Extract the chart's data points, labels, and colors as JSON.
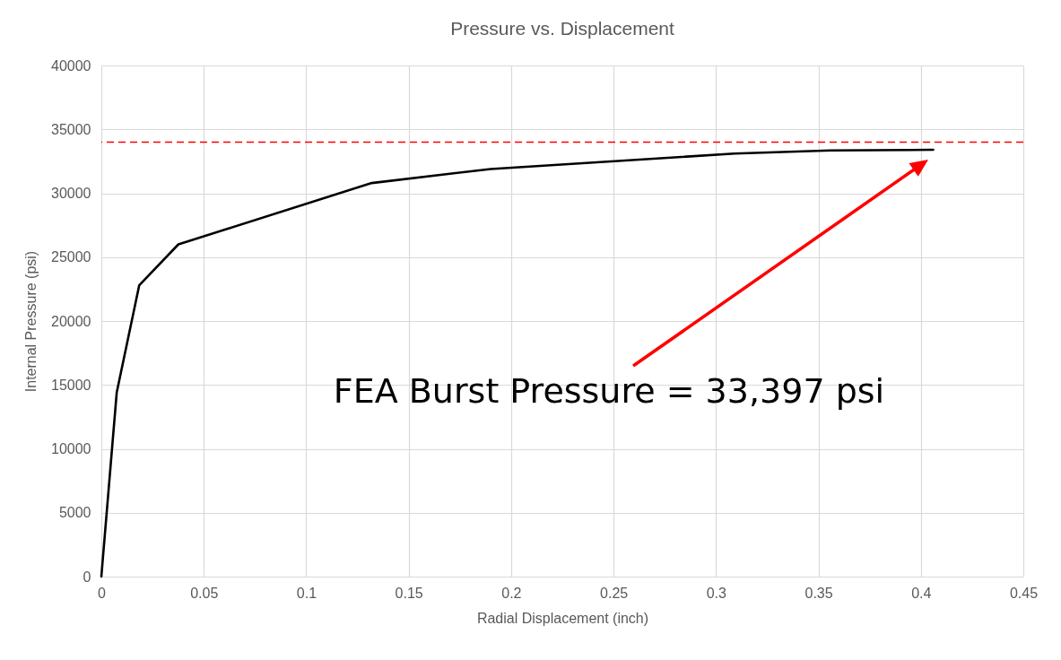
{
  "chart_data": {
    "type": "line",
    "title": "Pressure vs. Displacement",
    "xlabel": "Radial Displacement (inch)",
    "ylabel": "Internal Pressure (psi)",
    "x": [
      0,
      0.0075,
      0.0185,
      0.0376,
      0.132,
      0.19,
      0.309,
      0.356,
      0.406
    ],
    "series": [
      {
        "color": "#000000",
        "values": [
          0,
          14400,
          22800,
          26000,
          30800,
          31900,
          33100,
          33350,
          33400
        ]
      }
    ],
    "xlim": [
      0,
      0.45
    ],
    "xticks": [
      0,
      0.05,
      0.1,
      0.15,
      0.2,
      0.25,
      0.3,
      0.35,
      0.4,
      0.45
    ],
    "ylim": [
      0,
      40000
    ],
    "yticks": [
      0,
      5000,
      10000,
      15000,
      20000,
      25000,
      30000,
      35000,
      40000
    ],
    "grid": true,
    "marker": "none",
    "line_style": "solid",
    "ref_lines": [
      {
        "axis": "y",
        "value": 34000,
        "color": "#ff0000",
        "line_style": "dashed"
      }
    ],
    "annotations": [
      "FEA Burst Pressure = 33,397 psi"
    ]
  }
}
